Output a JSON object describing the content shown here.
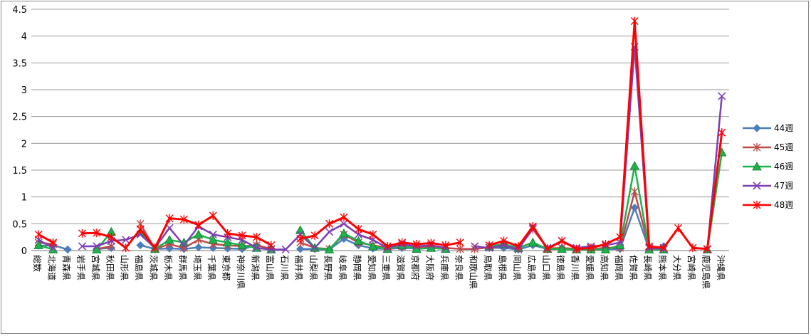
{
  "chart_data": {
    "type": "line",
    "title": "",
    "xlabel": "",
    "ylabel": "",
    "ylim": [
      0,
      4.5
    ],
    "yticks": [
      "0",
      "0.5",
      "1",
      "1.5",
      "2",
      "2.5",
      "3",
      "3.5",
      "4",
      "4.5"
    ],
    "grid": "horizontal",
    "legend_position": "right",
    "categories": [
      "総数",
      "北海道",
      "青森県",
      "岩手県",
      "宮城県",
      "秋田県",
      "山形県",
      "福島県",
      "茨城県",
      "栃木県",
      "群馬県",
      "埼玉県",
      "千葉県",
      "東京都",
      "神奈川県",
      "新潟県",
      "富山県",
      "石川県",
      "福井県",
      "山梨県",
      "長野県",
      "岐阜県",
      "静岡県",
      "愛知県",
      "三重県",
      "滋賀県",
      "京都府",
      "大阪府",
      "兵庫県",
      "奈良県",
      "和歌山県",
      "鳥取県",
      "島根県",
      "岡山県",
      "広島県",
      "山口県",
      "徳島県",
      "香川県",
      "愛媛県",
      "高知県",
      "福岡県",
      "佐賀県",
      "長崎県",
      "熊本県",
      "大分県",
      "宮崎県",
      "鹿児島県",
      "沖縄県"
    ],
    "series": [
      {
        "name": "44週",
        "color": "#4a7ebb",
        "marker": "diamond",
        "values": [
          0.09,
          0.1,
          0.02,
          null,
          0.03,
          0.05,
          null,
          0.1,
          0.03,
          0.04,
          0.03,
          0.06,
          0.05,
          0.04,
          0.03,
          0.1,
          0.03,
          null,
          0.03,
          0.03,
          0.02,
          0.22,
          0.1,
          0.04,
          0.03,
          0.05,
          0.04,
          0.05,
          0.03,
          null,
          null,
          0.05,
          0.05,
          0.02,
          0.1,
          0.03,
          0.05,
          0.02,
          0.02,
          0.03,
          0.03,
          0.8,
          0.02,
          0.08,
          null,
          null,
          null,
          null
        ]
      },
      {
        "name": "45週",
        "color": "#be4b48",
        "marker": "star",
        "values": [
          0.15,
          0.12,
          null,
          null,
          0.03,
          0.08,
          null,
          0.5,
          0.03,
          0.12,
          0.05,
          0.2,
          0.12,
          0.1,
          0.08,
          0.1,
          0.03,
          null,
          0.15,
          0.05,
          0.03,
          0.3,
          0.15,
          0.1,
          0.05,
          0.08,
          0.06,
          0.08,
          0.05,
          0.03,
          0.03,
          0.06,
          0.1,
          0.04,
          0.4,
          0.04,
          0.05,
          0.03,
          0.03,
          0.05,
          0.05,
          1.1,
          0.04,
          0.03,
          null,
          null,
          null,
          2.2
        ]
      },
      {
        "name": "46週",
        "color": "#1fb14b",
        "marker": "triangle",
        "values": [
          0.1,
          0.02,
          null,
          null,
          0.02,
          0.35,
          null,
          0.35,
          0.03,
          0.2,
          0.15,
          0.3,
          0.2,
          0.15,
          0.1,
          0.05,
          0.02,
          null,
          0.38,
          0.05,
          0.02,
          0.32,
          0.18,
          0.08,
          0.03,
          0.1,
          0.03,
          0.05,
          0.03,
          null,
          null,
          0.08,
          0.12,
          0.05,
          0.15,
          0.03,
          0.03,
          0.02,
          0.02,
          0.02,
          0.1,
          1.58,
          0.02,
          0.02,
          null,
          null,
          0.02,
          1.83
        ]
      },
      {
        "name": "47週",
        "color": "#7d3fb4",
        "marker": "x",
        "values": [
          0.2,
          0.05,
          null,
          0.08,
          0.08,
          0.18,
          0.2,
          0.3,
          0.05,
          0.42,
          0.1,
          0.45,
          0.3,
          0.25,
          0.2,
          0.05,
          0.02,
          0.02,
          0.3,
          0.05,
          0.35,
          0.5,
          0.3,
          0.2,
          0.05,
          0.12,
          0.08,
          0.1,
          0.05,
          null,
          0.08,
          0.05,
          0.1,
          0.02,
          0.42,
          0.05,
          0.18,
          0.05,
          0.08,
          0.1,
          0.15,
          3.8,
          0.05,
          0.03,
          null,
          null,
          0.02,
          2.88
        ]
      },
      {
        "name": "48週",
        "color": "#ff0000",
        "marker": "star",
        "values": [
          0.3,
          0.15,
          null,
          0.32,
          0.33,
          0.25,
          0.05,
          0.4,
          0.05,
          0.6,
          0.58,
          0.48,
          0.65,
          0.32,
          0.28,
          0.25,
          0.1,
          null,
          0.22,
          0.28,
          0.5,
          0.62,
          0.4,
          0.3,
          0.08,
          0.15,
          0.12,
          0.14,
          0.1,
          0.15,
          null,
          0.1,
          0.18,
          0.08,
          0.45,
          0.03,
          0.18,
          0.03,
          0.05,
          0.12,
          0.25,
          4.28,
          0.08,
          0.05,
          0.42,
          0.05,
          0.03,
          2.2
        ]
      }
    ]
  }
}
